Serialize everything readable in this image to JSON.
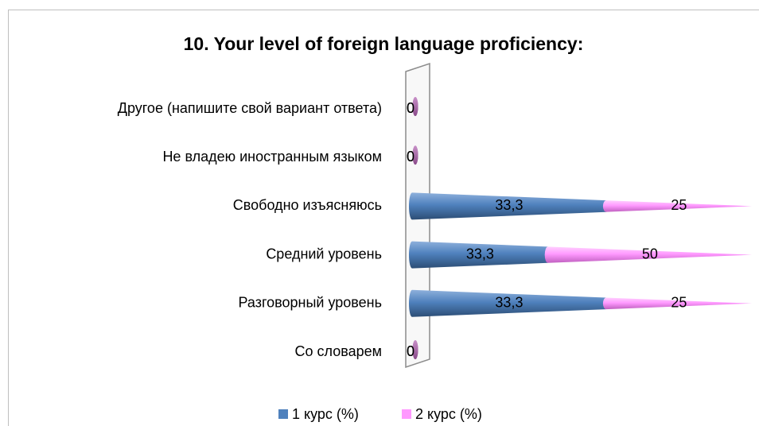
{
  "chart_data": {
    "type": "cone-bar-stacked-100",
    "title": "10. Your level of foreign language proficiency:",
    "categories": [
      "Другое (напишите свой вариант ответа)",
      "Не владею иностранным языком",
      "Свободно изъясняюсь",
      "Средний уровень",
      "Разговорный уровень",
      "Со словарем"
    ],
    "series": [
      {
        "name": "1 курс (%)",
        "color": "#4f81bd",
        "values": [
          0,
          0,
          33.3,
          33.3,
          33.3,
          0
        ],
        "value_labels": [
          "0",
          "0",
          "33,3",
          "33,3",
          "33,3",
          "0"
        ]
      },
      {
        "name": "2 курс (%)",
        "color": "#ff99ff",
        "values": [
          0,
          0,
          25,
          50,
          25,
          0
        ]
      }
    ],
    "legend": "bottom"
  }
}
